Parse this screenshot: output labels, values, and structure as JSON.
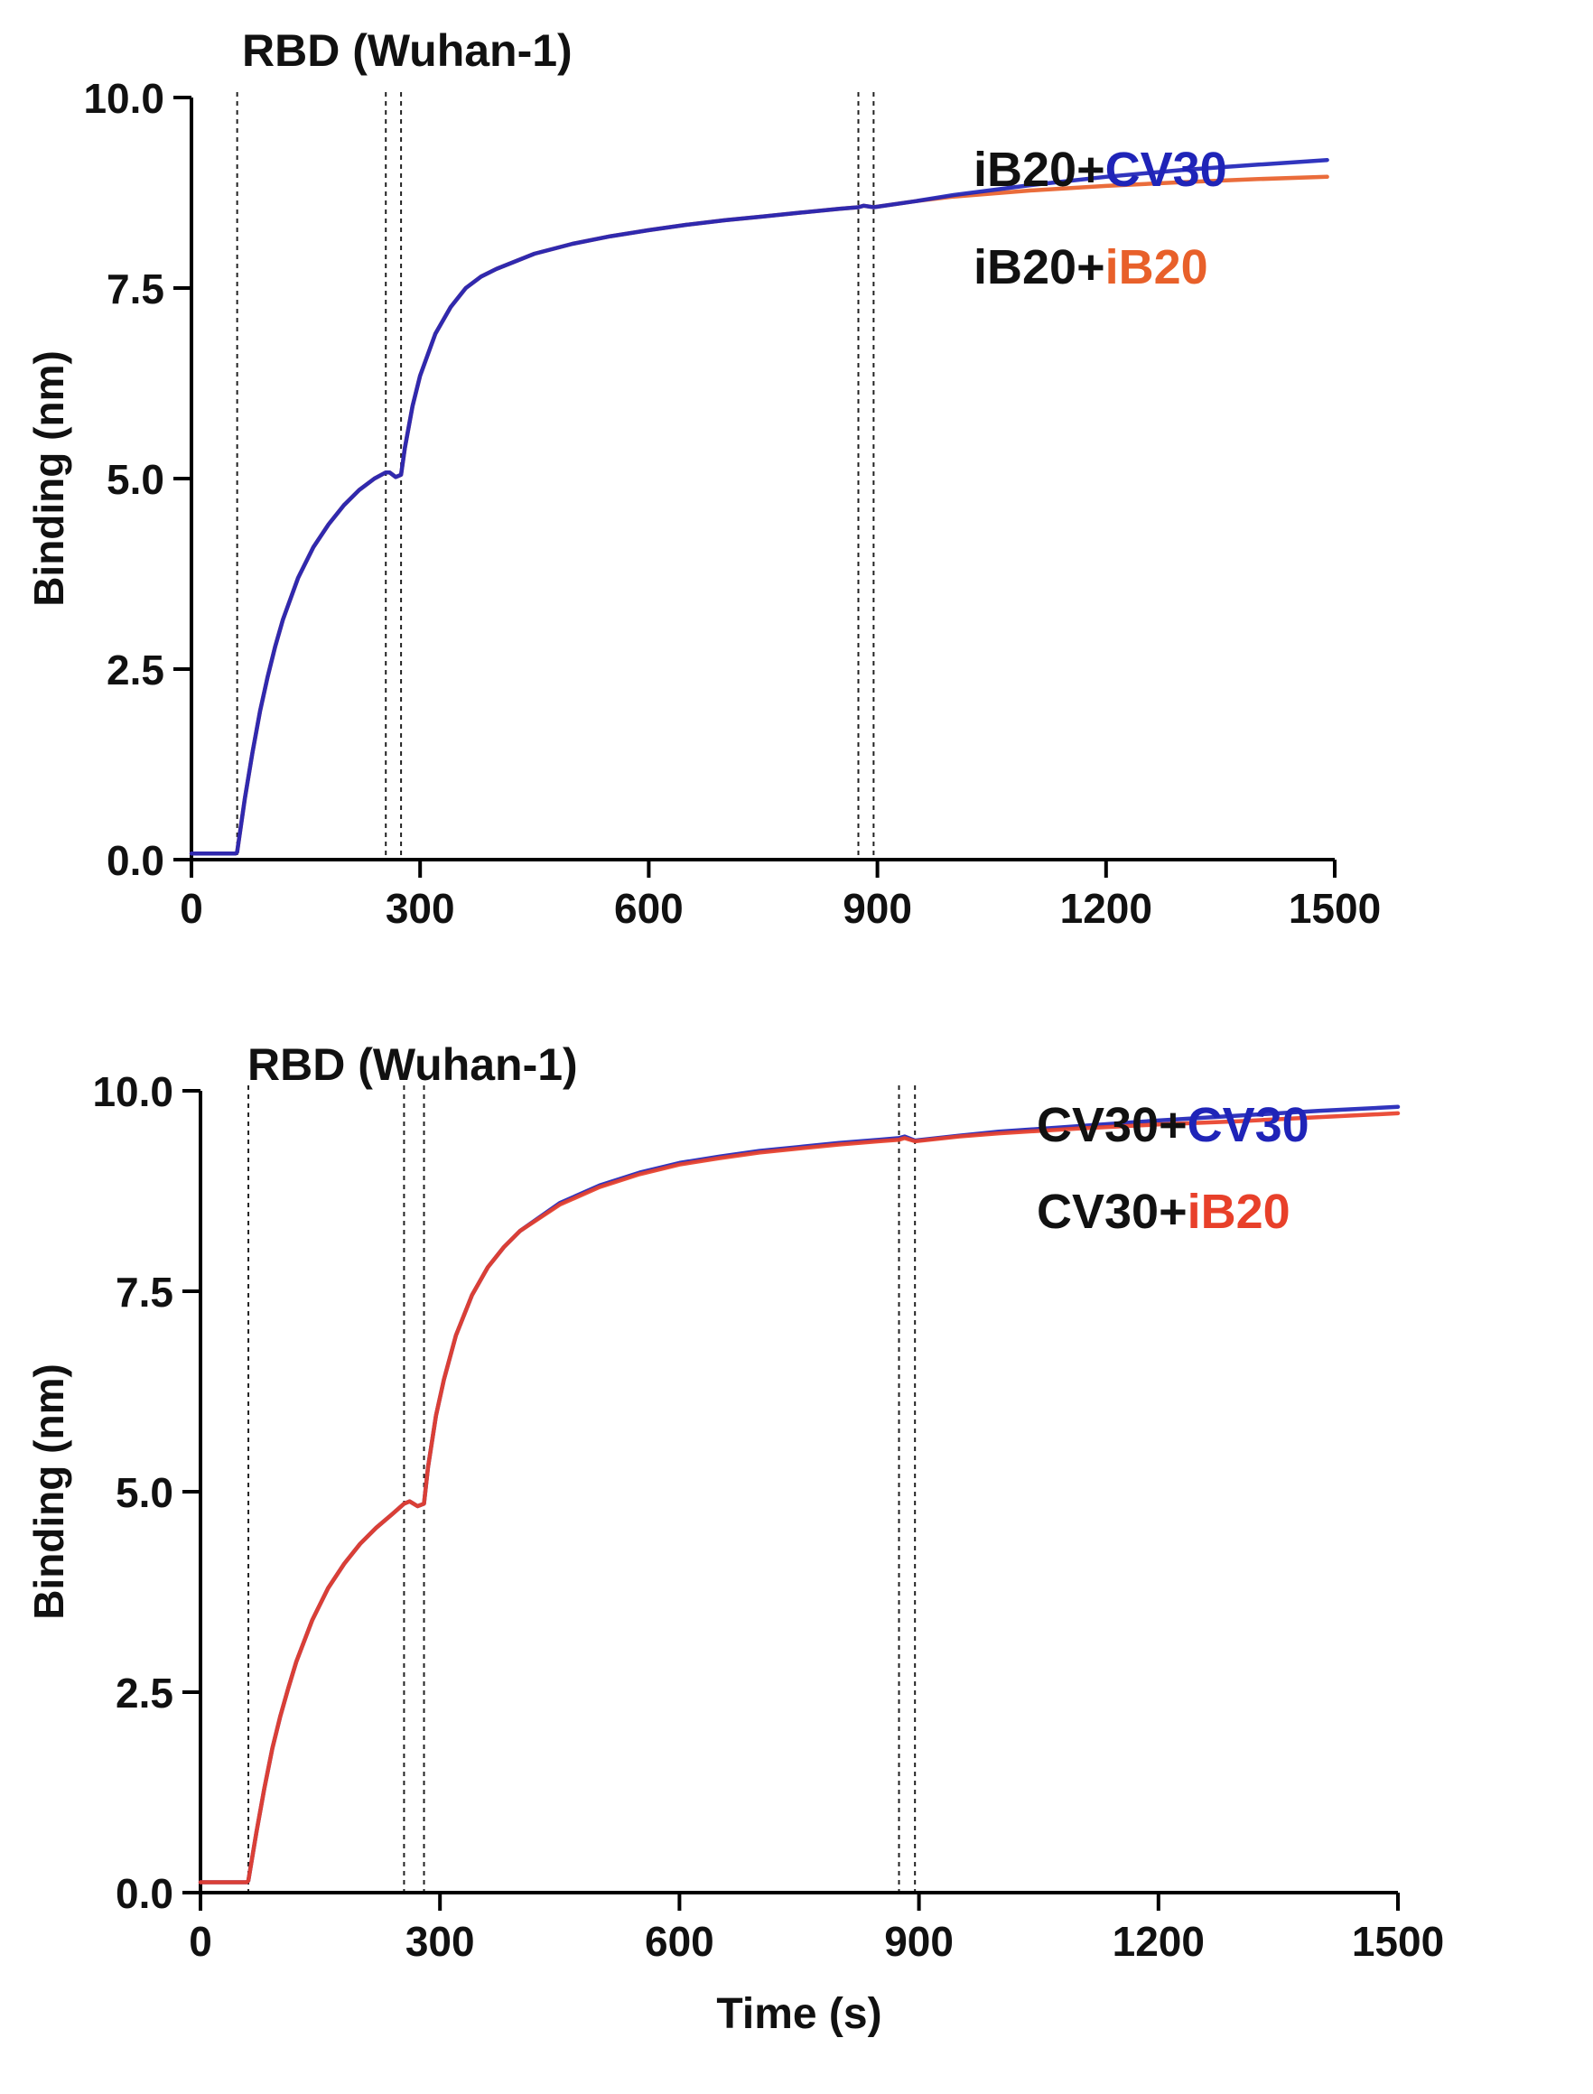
{
  "chart_data": [
    {
      "type": "line",
      "title": "RBD (Wuhan-1)",
      "xlabel": "",
      "ylabel": "Binding (nm)",
      "xlim": [
        0,
        1500
      ],
      "ylim": [
        0,
        10
      ],
      "xticks": [
        "0",
        "300",
        "600",
        "900",
        "1200",
        "1500"
      ],
      "yticks": [
        "0.0",
        "2.5",
        "5.0",
        "7.5",
        "10.0"
      ],
      "vlines": [
        60,
        255,
        275,
        875,
        895
      ],
      "series": [
        {
          "name": "iB20+iB20",
          "color": "#e8602a",
          "x": [
            0,
            58,
            60,
            70,
            80,
            90,
            100,
            110,
            120,
            140,
            160,
            180,
            200,
            220,
            240,
            255,
            260,
            268,
            275,
            280,
            290,
            300,
            320,
            340,
            360,
            380,
            400,
            450,
            500,
            550,
            600,
            650,
            700,
            750,
            800,
            850,
            875,
            882,
            895,
            950,
            1000,
            1100,
            1200,
            1300,
            1400,
            1490
          ],
          "y": [
            0.08,
            0.08,
            0.1,
            0.8,
            1.4,
            1.95,
            2.4,
            2.8,
            3.15,
            3.7,
            4.1,
            4.4,
            4.65,
            4.85,
            5.0,
            5.08,
            5.08,
            5.02,
            5.05,
            5.4,
            5.95,
            6.35,
            6.9,
            7.25,
            7.5,
            7.65,
            7.75,
            7.95,
            8.08,
            8.18,
            8.26,
            8.33,
            8.39,
            8.44,
            8.49,
            8.54,
            8.56,
            8.58,
            8.56,
            8.64,
            8.7,
            8.78,
            8.84,
            8.89,
            8.93,
            8.96
          ],
          "label_line1": "iB20+",
          "label_line2": "iB20"
        },
        {
          "name": "iB20+CV30",
          "color": "#1f24b8",
          "x": [
            0,
            58,
            60,
            70,
            80,
            90,
            100,
            110,
            120,
            140,
            160,
            180,
            200,
            220,
            240,
            255,
            260,
            268,
            275,
            280,
            290,
            300,
            320,
            340,
            360,
            380,
            400,
            450,
            500,
            550,
            600,
            650,
            700,
            750,
            800,
            850,
            875,
            882,
            895,
            950,
            1000,
            1100,
            1200,
            1300,
            1400,
            1490
          ],
          "y": [
            0.08,
            0.08,
            0.1,
            0.8,
            1.4,
            1.95,
            2.4,
            2.8,
            3.15,
            3.7,
            4.1,
            4.4,
            4.65,
            4.85,
            5.0,
            5.08,
            5.08,
            5.02,
            5.05,
            5.4,
            5.95,
            6.35,
            6.9,
            7.25,
            7.5,
            7.65,
            7.75,
            7.95,
            8.08,
            8.18,
            8.26,
            8.33,
            8.39,
            8.44,
            8.49,
            8.54,
            8.56,
            8.58,
            8.56,
            8.64,
            8.72,
            8.85,
            8.96,
            9.05,
            9.12,
            9.18
          ],
          "label_line1": "iB20+",
          "label_line2": "CV30"
        }
      ]
    },
    {
      "type": "line",
      "title": "RBD (Wuhan-1)",
      "xlabel": "Time (s)",
      "ylabel": "Binding (nm)",
      "xlim": [
        0,
        1500
      ],
      "ylim": [
        0,
        10
      ],
      "xticks": [
        "0",
        "300",
        "600",
        "900",
        "1200",
        "1500"
      ],
      "yticks": [
        "0.0",
        "2.5",
        "5.0",
        "7.5",
        "10.0"
      ],
      "vlines": [
        60,
        255,
        280,
        875,
        895
      ],
      "series": [
        {
          "name": "CV30+CV30",
          "color": "#1f24b8",
          "x": [
            0,
            58,
            60,
            70,
            80,
            90,
            100,
            110,
            120,
            140,
            160,
            180,
            200,
            220,
            240,
            255,
            262,
            272,
            280,
            285,
            295,
            305,
            320,
            340,
            360,
            380,
            400,
            450,
            500,
            550,
            600,
            650,
            700,
            750,
            800,
            850,
            875,
            882,
            895,
            950,
            1000,
            1100,
            1200,
            1300,
            1400,
            1500
          ],
          "y": [
            0.13,
            0.13,
            0.15,
            0.75,
            1.3,
            1.8,
            2.2,
            2.55,
            2.88,
            3.4,
            3.8,
            4.1,
            4.35,
            4.55,
            4.72,
            4.85,
            4.88,
            4.82,
            4.85,
            5.3,
            5.95,
            6.4,
            6.95,
            7.45,
            7.8,
            8.05,
            8.25,
            8.6,
            8.82,
            8.98,
            9.1,
            9.18,
            9.25,
            9.3,
            9.35,
            9.39,
            9.41,
            9.43,
            9.38,
            9.44,
            9.49,
            9.56,
            9.63,
            9.69,
            9.75,
            9.8
          ],
          "label_line1": "CV30+",
          "label_line2": "CV30"
        },
        {
          "name": "CV30+iB20",
          "color": "#e8402a",
          "x": [
            0,
            58,
            60,
            70,
            80,
            90,
            100,
            110,
            120,
            140,
            160,
            180,
            200,
            220,
            240,
            255,
            262,
            272,
            280,
            285,
            295,
            305,
            320,
            340,
            360,
            380,
            400,
            450,
            500,
            550,
            600,
            650,
            700,
            750,
            800,
            850,
            875,
            882,
            895,
            950,
            1000,
            1100,
            1200,
            1300,
            1400,
            1500
          ],
          "y": [
            0.13,
            0.13,
            0.15,
            0.75,
            1.3,
            1.8,
            2.2,
            2.55,
            2.88,
            3.4,
            3.8,
            4.1,
            4.35,
            4.55,
            4.72,
            4.85,
            4.88,
            4.82,
            4.85,
            5.3,
            5.95,
            6.4,
            6.95,
            7.45,
            7.8,
            8.05,
            8.25,
            8.58,
            8.8,
            8.96,
            9.08,
            9.16,
            9.23,
            9.28,
            9.33,
            9.37,
            9.39,
            9.41,
            9.37,
            9.43,
            9.47,
            9.53,
            9.58,
            9.62,
            9.67,
            9.72
          ],
          "label_line1": "CV30+",
          "label_line2": "iB20"
        }
      ]
    }
  ]
}
